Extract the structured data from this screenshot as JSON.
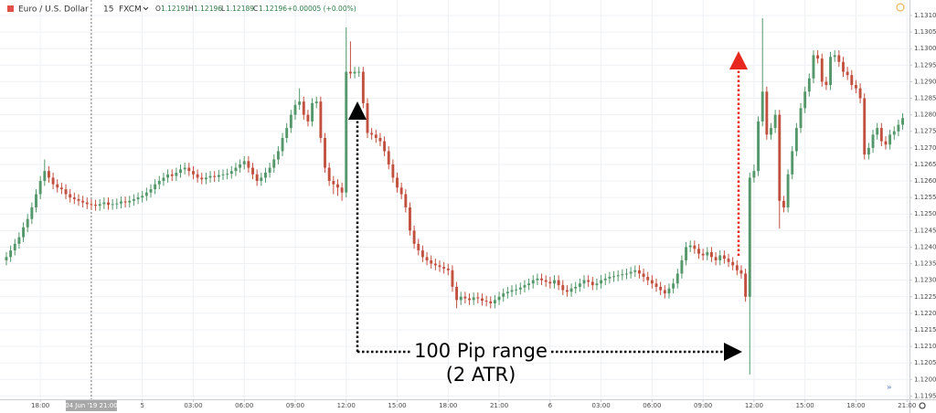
{
  "chart_data": {
    "type": "candlestick",
    "symbol": "Euro / U.S. Dollar",
    "interval": "15",
    "source": "FXCM",
    "quote": {
      "open": {
        "label": "O",
        "value": 1.12191
      },
      "high": {
        "label": "H",
        "value": 1.12196
      },
      "low": {
        "label": "L",
        "value": 1.12189
      },
      "close": {
        "label": "C",
        "value": 1.12196
      },
      "change": "+0.00005 (+0.00%)"
    },
    "annotations": [
      "100 Pip range",
      "(2 ATR)"
    ],
    "up_color": "#53976a",
    "down_color": "#c2503f",
    "grid": true,
    "ylim": [
      1.1194,
      1.13147
    ],
    "xlim": [
      -1.5,
      212.6
    ],
    "yticks": [
      {
        "value": 1.131,
        "label": "1.13100"
      },
      {
        "value": 1.1305,
        "label": "1.13050"
      },
      {
        "value": 1.13,
        "label": "1.13000"
      },
      {
        "value": 1.1295,
        "label": "1.12950"
      },
      {
        "value": 1.129,
        "label": "1.12900"
      },
      {
        "value": 1.1285,
        "label": "1.12850"
      },
      {
        "value": 1.128,
        "label": "1.12800"
      },
      {
        "value": 1.1275,
        "label": "1.12750"
      },
      {
        "value": 1.127,
        "label": "1.12700"
      },
      {
        "value": 1.1265,
        "label": "1.12650"
      },
      {
        "value": 1.126,
        "label": "1.12600"
      },
      {
        "value": 1.1255,
        "label": "1.12550"
      },
      {
        "value": 1.125,
        "label": "1.12500"
      },
      {
        "value": 1.1245,
        "label": "1.12450"
      },
      {
        "value": 1.124,
        "label": "1.12400"
      },
      {
        "value": 1.1235,
        "label": "1.12350"
      },
      {
        "value": 1.123,
        "label": "1.12300"
      },
      {
        "value": 1.1225,
        "label": "1.12250"
      },
      {
        "value": 1.122,
        "label": "1.12200"
      },
      {
        "value": 1.1215,
        "label": "1.12150"
      },
      {
        "value": 1.121,
        "label": "1.12100"
      },
      {
        "value": 1.1205,
        "label": "1.12050"
      },
      {
        "value": 1.12,
        "label": "1.12000"
      },
      {
        "value": 1.1195,
        "label": "1.11950"
      }
    ],
    "xticks": [
      {
        "value": 8,
        "label": "18:00"
      },
      {
        "value": 32,
        "label": "5"
      },
      {
        "value": 44,
        "label": "03:00"
      },
      {
        "value": 56,
        "label": "06:00"
      },
      {
        "value": 68,
        "label": "09:00"
      },
      {
        "value": 80,
        "label": "12:00"
      },
      {
        "value": 92,
        "label": "15:00"
      },
      {
        "value": 104,
        "label": "18:00"
      },
      {
        "value": 116,
        "label": "21:00"
      },
      {
        "value": 128,
        "label": "6"
      },
      {
        "value": 140,
        "label": "03:00"
      },
      {
        "value": 152,
        "label": "06:00"
      },
      {
        "value": 164,
        "label": "09:00"
      },
      {
        "value": 176,
        "label": "12:00"
      },
      {
        "value": 188,
        "label": "15:00"
      },
      {
        "value": 200,
        "label": "18:00"
      },
      {
        "value": 212,
        "label": "21:00"
      }
    ],
    "crosshair": {
      "value": 20,
      "label": "04 Jun '19 21:00"
    },
    "open": [
      1.1236,
      1.1237,
      1.1239,
      1.1241,
      1.1243,
      1.1246,
      1.12485,
      1.1252,
      1.1256,
      1.126,
      1.1263,
      1.1261,
      1.1259,
      1.1258,
      1.12575,
      1.1256,
      1.1255,
      1.12545,
      1.1254,
      1.12535,
      1.1253,
      1.12528,
      1.12525,
      1.1253,
      1.12535,
      1.12528,
      1.1253,
      1.12532,
      1.12538,
      1.12535,
      1.1254,
      1.12545,
      1.1255,
      1.12555,
      1.12565,
      1.12575,
      1.1259,
      1.126,
      1.1261,
      1.1262,
      1.12615,
      1.12625,
      1.12635,
      1.1264,
      1.1263,
      1.1262,
      1.1261,
      1.12605,
      1.1261,
      1.12615,
      1.12612,
      1.12618,
      1.1262,
      1.12622,
      1.1263,
      1.1264,
      1.1265,
      1.1266,
      1.1264,
      1.1262,
      1.126,
      1.1261,
      1.12625,
      1.1264,
      1.12665,
      1.1269,
      1.1273,
      1.1276,
      1.128,
      1.1283,
      1.1284,
      1.128,
      1.1278,
      1.12835,
      1.1284,
      1.1273,
      1.1264,
      1.126,
      1.1259,
      1.1258,
      1.12565,
      1.1293,
      1.12925,
      1.1293,
      1.1293,
      1.12835,
      1.12745,
      1.1274,
      1.1273,
      1.1272,
      1.1269,
      1.1265,
      1.1261,
      1.1258,
      1.1256,
      1.1252,
      1.1245,
      1.1241,
      1.1239,
      1.1237,
      1.1236,
      1.1235,
      1.12345,
      1.1234,
      1.12335,
      1.1233,
      1.1228,
      1.1224,
      1.1225,
      1.12245,
      1.1224,
      1.12248,
      1.12245,
      1.12238,
      1.12236,
      1.1223,
      1.1224,
      1.1225,
      1.1226,
      1.12265,
      1.1227,
      1.12272,
      1.12278,
      1.12285,
      1.1229,
      1.123,
      1.12305,
      1.123,
      1.12295,
      1.1229,
      1.123,
      1.12285,
      1.1227,
      1.12265,
      1.12275,
      1.1228,
      1.1229,
      1.123,
      1.12295,
      1.12285,
      1.1229,
      1.123,
      1.12305,
      1.1231,
      1.12312,
      1.12315,
      1.12318,
      1.1232,
      1.12325,
      1.1233,
      1.1232,
      1.1231,
      1.123,
      1.1229,
      1.1228,
      1.1227,
      1.1226,
      1.12275,
      1.1229,
      1.1232,
      1.1236,
      1.124,
      1.12405,
      1.12395,
      1.1238,
      1.12375,
      1.12385,
      1.1237,
      1.1236,
      1.12375,
      1.12365,
      1.12355,
      1.12345,
      1.1233,
      1.1232,
      1.1225,
      1.1261,
      1.1263,
      1.1278,
      1.1287,
      1.1274,
      1.1276,
      1.128,
      1.1254,
      1.1252,
      1.1262,
      1.1269,
      1.1276,
      1.1282,
      1.1287,
      1.1291,
      1.1298,
      1.1297,
      1.129,
      1.1289,
      1.12975,
      1.1298,
      1.1296,
      1.1293,
      1.1292,
      1.1289,
      1.1288,
      1.1285,
      1.1268,
      1.127,
      1.1274,
      1.1276,
      1.1272,
      1.1271,
      1.1274,
      1.1275,
      1.1277
    ],
    "high": [
      1.12385,
      1.12405,
      1.12425,
      1.12445,
      1.12475,
      1.125,
      1.12535,
      1.12575,
      1.12615,
      1.12665,
      1.12645,
      1.12625,
      1.12605,
      1.12595,
      1.1259,
      1.12575,
      1.12565,
      1.1256,
      1.12555,
      1.1255,
      1.12545,
      1.12543,
      1.12545,
      1.1255,
      1.1255,
      1.12545,
      1.12547,
      1.12553,
      1.12553,
      1.12555,
      1.1256,
      1.12565,
      1.1257,
      1.1258,
      1.1259,
      1.12605,
      1.12615,
      1.12625,
      1.12635,
      1.12635,
      1.1264,
      1.1265,
      1.12655,
      1.12655,
      1.12645,
      1.12635,
      1.12625,
      1.12625,
      1.1263,
      1.1263,
      1.12633,
      1.12635,
      1.12637,
      1.12645,
      1.12655,
      1.12665,
      1.12675,
      1.12675,
      1.12655,
      1.12635,
      1.12625,
      1.1264,
      1.12655,
      1.1268,
      1.12705,
      1.12745,
      1.12775,
      1.12815,
      1.12845,
      1.1288,
      1.12855,
      1.12815,
      1.1285,
      1.12855,
      1.12855,
      1.12745,
      1.12655,
      1.12615,
      1.12605,
      1.12595,
      1.13064,
      1.13022,
      1.12945,
      1.12945,
      1.12945,
      1.1285,
      1.1276,
      1.12755,
      1.12745,
      1.12735,
      1.12705,
      1.12665,
      1.12625,
      1.12595,
      1.12575,
      1.12535,
      1.12465,
      1.12425,
      1.12405,
      1.12385,
      1.12375,
      1.12365,
      1.1236,
      1.12355,
      1.1235,
      1.12345,
      1.12295,
      1.12265,
      1.12265,
      1.1226,
      1.12263,
      1.12263,
      1.1226,
      1.12253,
      1.12251,
      1.12255,
      1.12265,
      1.12275,
      1.1228,
      1.12285,
      1.12287,
      1.12293,
      1.123,
      1.12305,
      1.12315,
      1.1232,
      1.1232,
      1.12315,
      1.1231,
      1.12315,
      1.12315,
      1.123,
      1.12285,
      1.1229,
      1.12295,
      1.12305,
      1.12315,
      1.12315,
      1.1231,
      1.12305,
      1.12315,
      1.1232,
      1.12325,
      1.12327,
      1.1233,
      1.12333,
      1.12335,
      1.1234,
      1.12345,
      1.12345,
      1.12335,
      1.12325,
      1.12315,
      1.12305,
      1.12295,
      1.12285,
      1.1229,
      1.12305,
      1.12335,
      1.12375,
      1.12415,
      1.1242,
      1.1242,
      1.1241,
      1.12395,
      1.124,
      1.124,
      1.12385,
      1.1239,
      1.1239,
      1.1238,
      1.1237,
      1.1236,
      1.12345,
      1.12335,
      1.12625,
      1.1265,
      1.12795,
      1.13092,
      1.12885,
      1.12775,
      1.12815,
      1.12815,
      1.12555,
      1.12635,
      1.12705,
      1.12775,
      1.12835,
      1.12885,
      1.12925,
      1.12995,
      1.12995,
      1.12985,
      1.12915,
      1.1299,
      1.12995,
      1.12995,
      1.12975,
      1.12945,
      1.12935,
      1.12905,
      1.12895,
      1.12865,
      1.12715,
      1.12755,
      1.12775,
      1.12775,
      1.12735,
      1.12755,
      1.12765,
      1.12785,
      1.12805
    ],
    "low": [
      1.12345,
      1.12355,
      1.12375,
      1.12395,
      1.12415,
      1.12445,
      1.1247,
      1.12505,
      1.12545,
      1.12585,
      1.12595,
      1.12575,
      1.12565,
      1.1256,
      1.12545,
      1.12535,
      1.1253,
      1.12525,
      1.1252,
      1.12515,
      1.12513,
      1.1251,
      1.1251,
      1.12515,
      1.12513,
      1.12513,
      1.12515,
      1.12517,
      1.1252,
      1.1252,
      1.12525,
      1.1253,
      1.12535,
      1.1254,
      1.1255,
      1.1256,
      1.12575,
      1.12585,
      1.12595,
      1.126,
      1.126,
      1.1261,
      1.1262,
      1.12615,
      1.12605,
      1.12595,
      1.1259,
      1.1259,
      1.12595,
      1.12597,
      1.12597,
      1.12603,
      1.12605,
      1.12607,
      1.12615,
      1.12625,
      1.12635,
      1.12625,
      1.12605,
      1.12585,
      1.12585,
      1.12595,
      1.1261,
      1.12625,
      1.1265,
      1.12675,
      1.12715,
      1.12745,
      1.12785,
      1.12815,
      1.12785,
      1.12765,
      1.12765,
      1.1282,
      1.12715,
      1.12625,
      1.12585,
      1.1256,
      1.12555,
      1.1254,
      1.1255,
      1.1291,
      1.1291,
      1.12915,
      1.1282,
      1.1273,
      1.12725,
      1.12715,
      1.12705,
      1.12675,
      1.12635,
      1.12595,
      1.12565,
      1.12545,
      1.12505,
      1.12435,
      1.12395,
      1.12375,
      1.12355,
      1.12345,
      1.12335,
      1.1233,
      1.12325,
      1.1232,
      1.12315,
      1.12265,
      1.12215,
      1.12225,
      1.1223,
      1.12225,
      1.12225,
      1.1223,
      1.12223,
      1.12221,
      1.12215,
      1.12215,
      1.12225,
      1.12235,
      1.12245,
      1.1225,
      1.12255,
      1.12257,
      1.12263,
      1.1227,
      1.12275,
      1.12285,
      1.12285,
      1.1228,
      1.12275,
      1.12275,
      1.1227,
      1.12255,
      1.1225,
      1.1225,
      1.1226,
      1.12265,
      1.12275,
      1.1228,
      1.1227,
      1.1227,
      1.12275,
      1.12285,
      1.1229,
      1.12295,
      1.12297,
      1.123,
      1.12303,
      1.12305,
      1.1231,
      1.12305,
      1.12295,
      1.12285,
      1.12275,
      1.12265,
      1.12255,
      1.12245,
      1.12245,
      1.1226,
      1.12275,
      1.12305,
      1.12345,
      1.12385,
      1.1238,
      1.12365,
      1.1236,
      1.1236,
      1.12355,
      1.12345,
      1.12345,
      1.1235,
      1.1234,
      1.1233,
      1.12315,
      1.12305,
      1.12235,
      1.12015,
      1.12595,
      1.12615,
      1.12765,
      1.12725,
      1.12725,
      1.12745,
      1.12456,
      1.12505,
      1.12505,
      1.12605,
      1.12675,
      1.12745,
      1.12805,
      1.12855,
      1.12895,
      1.12955,
      1.12885,
      1.12875,
      1.12875,
      1.1296,
      1.12945,
      1.12915,
      1.12905,
      1.12875,
      1.12865,
      1.12835,
      1.12665,
      1.12665,
      1.12685,
      1.12725,
      1.12705,
      1.12695,
      1.12695,
      1.12725,
      1.12735,
      1.12755
    ],
    "close": [
      1.1237,
      1.1239,
      1.1241,
      1.1243,
      1.1246,
      1.12485,
      1.1252,
      1.1256,
      1.126,
      1.1263,
      1.1261,
      1.1259,
      1.1258,
      1.12575,
      1.1256,
      1.1255,
      1.12545,
      1.1254,
      1.12535,
      1.1253,
      1.12528,
      1.12525,
      1.1253,
      1.12535,
      1.12528,
      1.1253,
      1.12532,
      1.12538,
      1.12535,
      1.1254,
      1.12545,
      1.1255,
      1.12555,
      1.12565,
      1.12575,
      1.1259,
      1.126,
      1.1261,
      1.1262,
      1.12615,
      1.12625,
      1.12635,
      1.1264,
      1.1263,
      1.1262,
      1.1261,
      1.12605,
      1.1261,
      1.12615,
      1.12612,
      1.12618,
      1.1262,
      1.12622,
      1.1263,
      1.1264,
      1.1265,
      1.1266,
      1.1264,
      1.1262,
      1.126,
      1.1261,
      1.12625,
      1.1264,
      1.12665,
      1.1269,
      1.1273,
      1.1276,
      1.128,
      1.1283,
      1.1284,
      1.128,
      1.1278,
      1.12835,
      1.1284,
      1.1273,
      1.1264,
      1.126,
      1.1259,
      1.1258,
      1.12565,
      1.1293,
      1.12925,
      1.1293,
      1.1293,
      1.12835,
      1.12745,
      1.1274,
      1.1273,
      1.1272,
      1.1269,
      1.1265,
      1.1261,
      1.1258,
      1.1256,
      1.1252,
      1.1245,
      1.1241,
      1.1239,
      1.1237,
      1.1236,
      1.1235,
      1.12345,
      1.1234,
      1.12335,
      1.1233,
      1.1228,
      1.1224,
      1.1225,
      1.12245,
      1.1224,
      1.12248,
      1.12245,
      1.12238,
      1.12236,
      1.1223,
      1.1224,
      1.1225,
      1.1226,
      1.12265,
      1.1227,
      1.12272,
      1.12278,
      1.12285,
      1.1229,
      1.123,
      1.12305,
      1.123,
      1.12295,
      1.1229,
      1.123,
      1.12285,
      1.1227,
      1.12265,
      1.12275,
      1.1228,
      1.1229,
      1.123,
      1.12295,
      1.12285,
      1.1229,
      1.123,
      1.12305,
      1.1231,
      1.12312,
      1.12315,
      1.12318,
      1.1232,
      1.12325,
      1.1233,
      1.1232,
      1.1231,
      1.123,
      1.1229,
      1.1228,
      1.1227,
      1.1226,
      1.12275,
      1.1229,
      1.1232,
      1.1236,
      1.124,
      1.12405,
      1.12395,
      1.1238,
      1.12375,
      1.12385,
      1.1237,
      1.1236,
      1.12375,
      1.12365,
      1.12355,
      1.12345,
      1.1233,
      1.1232,
      1.1225,
      1.1261,
      1.1263,
      1.1278,
      1.1287,
      1.1274,
      1.1276,
      1.128,
      1.1254,
      1.1252,
      1.1262,
      1.1269,
      1.1276,
      1.1282,
      1.1287,
      1.1291,
      1.1298,
      1.1297,
      1.129,
      1.1289,
      1.12975,
      1.1298,
      1.1296,
      1.1293,
      1.1292,
      1.1289,
      1.1288,
      1.1285,
      1.1268,
      1.127,
      1.1274,
      1.1276,
      1.1272,
      1.1271,
      1.1274,
      1.1275,
      1.1277,
      1.1279
    ]
  }
}
